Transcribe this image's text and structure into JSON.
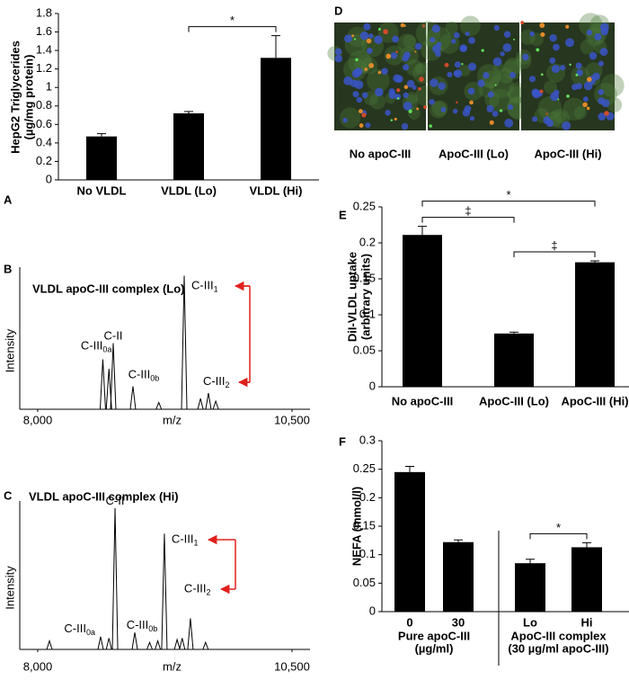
{
  "chart_data": [
    {
      "type": "bar",
      "panel": "A",
      "ylabel": [
        "HepG2 Triglycerides",
        "(µg/mg protein)"
      ],
      "categories": [
        "No VLDL",
        "VLDL (Lo)",
        "VLDL (Hi)"
      ],
      "values": [
        0.47,
        0.72,
        1.32
      ],
      "error": [
        0.03,
        0.02,
        0.24
      ],
      "color": "#000000",
      "ylim": [
        0,
        1.8
      ],
      "yticks": [
        0,
        0.2,
        0.4,
        0.6,
        0.8,
        1,
        1.2,
        1.4,
        1.6,
        1.8
      ],
      "significance": [
        {
          "between": [
            "VLDL (Lo)",
            "VLDL (Hi)"
          ],
          "label": "*"
        }
      ]
    },
    {
      "type": "spectrum",
      "panel": "B",
      "title": "VLDL apoC-III complex (Lo)",
      "ylabel": "Intensity",
      "xlabel": "m/z",
      "xlim": [
        8000,
        10500
      ],
      "xticks": [
        {
          "value": 8000,
          "label": "8,000"
        },
        {
          "value": 10500,
          "label": "10,500"
        }
      ],
      "ylim": [
        0,
        100
      ],
      "color": "#000000",
      "x": [
        8640,
        8700,
        8742,
        8936,
        9190,
        9440,
        9600,
        9678,
        9750
      ],
      "values": [
        37,
        30,
        49,
        17,
        5,
        99,
        8,
        12,
        6
      ],
      "peak_labels": [
        [
          "C-III",
          "0a"
        ],
        null,
        [
          "C-II"
        ],
        [
          "C-III",
          "0b"
        ],
        null,
        [
          "C-III",
          "1"
        ],
        null,
        [
          "C-III",
          "2"
        ],
        null
      ]
    },
    {
      "type": "spectrum",
      "panel": "C",
      "title": "VLDL apoC-III complex (Hi)",
      "ylabel": "Intensity",
      "xlabel": "m/z",
      "xlim": [
        8000,
        10500
      ],
      "xticks": [
        {
          "value": 8000,
          "label": "8,000"
        },
        {
          "value": 10500,
          "label": "10,500"
        }
      ],
      "ylim": [
        0,
        100
      ],
      "color": "#000000",
      "x": [
        8115,
        8618,
        8700,
        8760,
        8954,
        9100,
        9180,
        9245,
        9370,
        9420,
        9501,
        9650
      ],
      "values": [
        6,
        9,
        8,
        100,
        12,
        5,
        6,
        82,
        7,
        8,
        22,
        5
      ],
      "peak_labels": [
        null,
        [
          "C-III",
          "0a"
        ],
        null,
        [
          "C-II"
        ],
        [
          "C-III",
          "0b"
        ],
        null,
        null,
        [
          "C-III",
          "1"
        ],
        null,
        null,
        [
          "C-III",
          "2"
        ],
        null
      ]
    },
    {
      "type": "image",
      "panel": "D",
      "categories": [
        "No apoC-III",
        "ApoC-III (Lo)",
        "ApoC-III (Hi)"
      ]
    },
    {
      "type": "bar",
      "panel": "E",
      "ylabel": [
        "DiI-VLDL uptake",
        "(arbitrary units)"
      ],
      "categories": [
        "No apoC-III",
        "ApoC-III (Lo)",
        "ApoC-III (Hi)"
      ],
      "values": [
        0.211,
        0.074,
        0.173
      ],
      "error": [
        0.012,
        0.002,
        0.002
      ],
      "color": "#000000",
      "ylim": [
        0,
        0.25
      ],
      "yticks": [
        0,
        0.05,
        0.1,
        0.15,
        0.2,
        0.25
      ],
      "significance": [
        {
          "between": [
            "No apoC-III",
            "ApoC-III (Lo)"
          ],
          "label": "‡"
        },
        {
          "between": [
            "ApoC-III (Lo)",
            "ApoC-III (Hi)"
          ],
          "label": "‡"
        },
        {
          "between": [
            "No apoC-III",
            "ApoC-III (Hi)"
          ],
          "label": "*"
        }
      ]
    },
    {
      "type": "grouped-bar",
      "panel": "F",
      "ylabel": "NEFA (mmol/l)",
      "color": "#000000",
      "groups": [
        {
          "label": [
            "Pure apoC-III",
            "(µg/ml)"
          ],
          "categories": [
            "0",
            "30"
          ],
          "values": [
            0.245,
            0.122
          ],
          "error": [
            0.01,
            0.004
          ]
        },
        {
          "label": [
            "ApoC-III complex",
            "(30 µg/ml apoC-III)"
          ],
          "categories": [
            "Lo",
            "Hi"
          ],
          "values": [
            0.085,
            0.113
          ],
          "error": [
            0.007,
            0.008
          ]
        }
      ],
      "ylim": [
        0,
        0.3
      ],
      "yticks": [
        0,
        0.05,
        0.1,
        0.15,
        0.2,
        0.25,
        0.3
      ],
      "significance": [
        {
          "between": [
            "Lo",
            "Hi"
          ],
          "label": "*"
        }
      ]
    }
  ]
}
